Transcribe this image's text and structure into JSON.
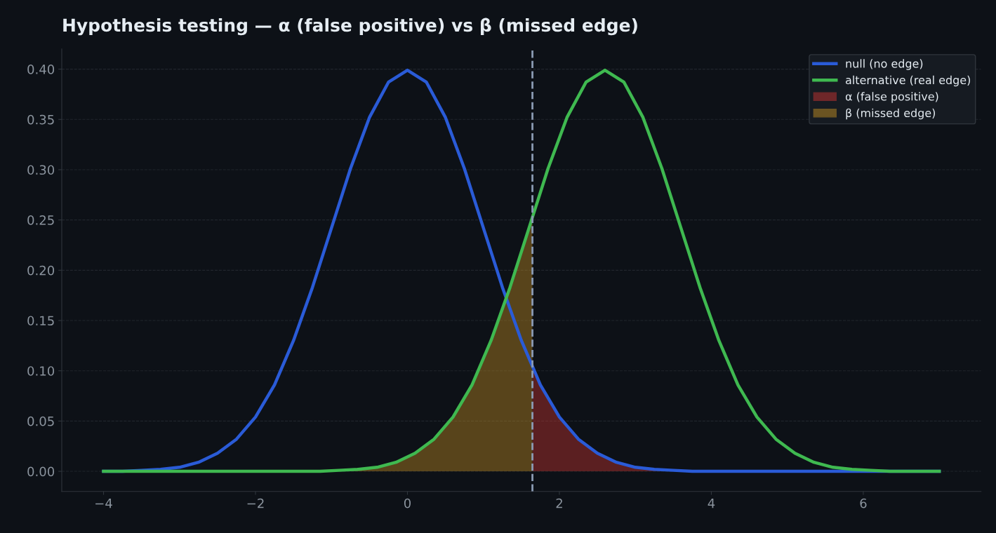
{
  "chart_data": {
    "type": "line",
    "title": "Hypothesis testing — α (false positive) vs β (missed edge)",
    "xlim": [
      -4.55,
      7.55
    ],
    "xticks": [
      {
        "value": -4,
        "label": "−4"
      },
      {
        "value": -2,
        "label": "−2"
      },
      0,
      2,
      4,
      6
    ],
    "ylim": [
      -0.02,
      0.42
    ],
    "yticks": [
      {
        "value": 0,
        "label": "0.00"
      },
      {
        "value": 0.05,
        "label": "0.05"
      },
      {
        "value": 0.1,
        "label": "0.10"
      },
      {
        "value": 0.15,
        "label": "0.15"
      },
      {
        "value": 0.2,
        "label": "0.20"
      },
      {
        "value": 0.25,
        "label": "0.25"
      },
      {
        "value": 0.3,
        "label": "0.30"
      },
      {
        "value": 0.35,
        "label": "0.35"
      },
      {
        "value": 0.4,
        "label": "0.40"
      }
    ],
    "grid": "y",
    "legend": "top right",
    "ref_lines": [
      {
        "axis": "x",
        "value": 1.645,
        "color": "#8b9bb4",
        "line_style": "dashed"
      }
    ],
    "series": [
      {
        "name": "null (no edge)",
        "color": "#2a5bd7",
        "x": [
          -4,
          -3.75,
          -3.5,
          -3.25,
          -3,
          -2.75,
          -2.5,
          -2.25,
          -2,
          -1.75,
          -1.5,
          -1.25,
          -1,
          -0.75,
          -0.5,
          -0.25,
          0,
          0.25,
          0.5,
          0.75,
          1,
          1.25,
          1.5,
          1.75,
          2,
          2.25,
          2.5,
          2.75,
          3,
          3.25,
          3.5,
          3.75,
          4,
          4.5,
          5,
          6,
          7
        ],
        "values": [
          0,
          0,
          0.001,
          0.002,
          0.004,
          0.009,
          0.018,
          0.032,
          0.054,
          0.086,
          0.13,
          0.183,
          0.242,
          0.301,
          0.352,
          0.387,
          0.399,
          0.387,
          0.352,
          0.301,
          0.242,
          0.183,
          0.13,
          0.086,
          0.054,
          0.032,
          0.018,
          0.009,
          0.004,
          0.002,
          0.001,
          0,
          0,
          0,
          0,
          0,
          0
        ]
      },
      {
        "name": "alternative (real edge)",
        "color": "#3fb950",
        "x": [
          -4,
          -3,
          -2,
          -1.15,
          -0.9,
          -0.65,
          -0.4,
          -0.15,
          0.1,
          0.35,
          0.6,
          0.85,
          1.1,
          1.35,
          1.6,
          1.85,
          2.1,
          2.35,
          2.6,
          2.85,
          3.1,
          3.35,
          3.6,
          3.85,
          4.1,
          4.35,
          4.6,
          4.85,
          5.1,
          5.35,
          5.6,
          5.85,
          6.1,
          6.35,
          7
        ],
        "values": [
          0,
          0,
          0,
          0,
          0.001,
          0.002,
          0.004,
          0.009,
          0.018,
          0.032,
          0.054,
          0.086,
          0.13,
          0.183,
          0.242,
          0.301,
          0.352,
          0.387,
          0.399,
          0.387,
          0.352,
          0.301,
          0.242,
          0.183,
          0.13,
          0.086,
          0.054,
          0.032,
          0.018,
          0.009,
          0.004,
          0.002,
          0.001,
          0,
          0
        ]
      },
      {
        "type": "area",
        "name": "α (false positive)",
        "color": "#da3633",
        "x": [
          1.645,
          1.75,
          2,
          2.25,
          2.5,
          2.75,
          3,
          3.25,
          3.5,
          3.75,
          4,
          4.5,
          5,
          6,
          7
        ],
        "values": [
          0.103,
          0.086,
          0.054,
          0.032,
          0.018,
          0.009,
          0.004,
          0.002,
          0.001,
          0,
          0,
          0,
          0,
          0,
          0
        ]
      },
      {
        "type": "area",
        "name": "β (missed edge)",
        "color": "#d29922",
        "x": [
          -4,
          -3,
          -2,
          -1.15,
          -0.9,
          -0.65,
          -0.4,
          -0.15,
          0.1,
          0.35,
          0.6,
          0.85,
          1.1,
          1.35,
          1.6,
          1.645
        ],
        "values": [
          0,
          0,
          0,
          0,
          0.001,
          0.002,
          0.004,
          0.009,
          0.018,
          0.032,
          0.054,
          0.086,
          0.13,
          0.183,
          0.242,
          0.253
        ]
      }
    ]
  }
}
